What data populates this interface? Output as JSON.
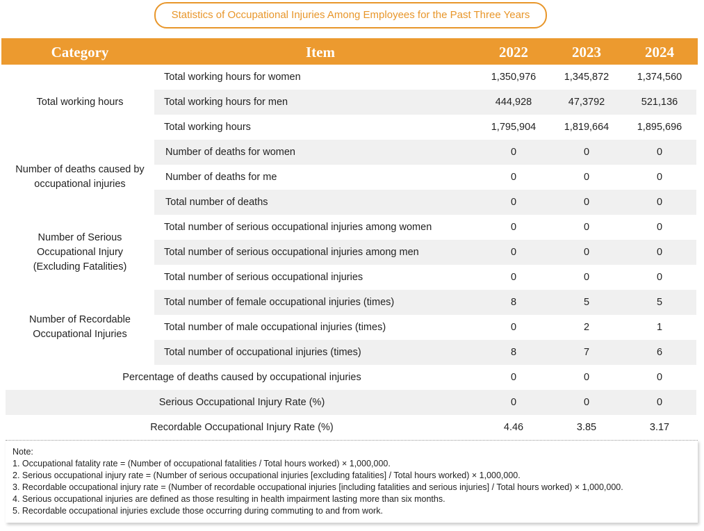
{
  "header": {
    "title": "Statistics of Occupational Injuries Among Employees for the Past Three Years"
  },
  "table": {
    "columns": [
      "Category",
      "Item",
      "2022",
      "2023",
      "2024"
    ],
    "groups": [
      {
        "category": "Total working hours",
        "rows": [
          {
            "item": "Total working hours for women",
            "values": [
              "1,350,976",
              "1,345,872",
              "1,374,560"
            ]
          },
          {
            "item": "Total working hours for men",
            "values": [
              "444,928",
              "47,3792",
              "521,136"
            ]
          },
          {
            "item": "Total working hours",
            "values": [
              "1,795,904",
              "1,819,664",
              "1,895,696"
            ]
          }
        ]
      },
      {
        "category": "Number of deaths caused by occupational injuries",
        "rows": [
          {
            "item": "Number of deaths for women",
            "values": [
              "0",
              "0",
              "0"
            ]
          },
          {
            "item": "Number of deaths for me",
            "values": [
              "0",
              "0",
              "0"
            ]
          },
          {
            "item": "Total number of deaths",
            "values": [
              "0",
              "0",
              "0"
            ]
          }
        ]
      },
      {
        "category": "Number of Serious Occupational Injury (Excluding Fatalities)",
        "rows": [
          {
            "item": "Total number of serious occupational injuries among women",
            "values": [
              "0",
              "0",
              "0"
            ]
          },
          {
            "item": "Total number of serious occupational injuries among men",
            "values": [
              "0",
              "0",
              "0"
            ]
          },
          {
            "item": "Total number of serious occupational injuries",
            "values": [
              "0",
              "0",
              "0"
            ]
          }
        ]
      },
      {
        "category": "Number of Recordable Occupational Injuries",
        "rows": [
          {
            "item": "Total number of female occupational injuries (times)",
            "values": [
              "8",
              "5",
              "5"
            ]
          },
          {
            "item": "Total number of male occupational injuries (times)",
            "values": [
              "0",
              "2",
              "1"
            ]
          },
          {
            "item": "Total number of occupational injuries (times)",
            "values": [
              "8",
              "7",
              "6"
            ]
          }
        ]
      }
    ],
    "summary_rows": [
      {
        "item": "Percentage of deaths caused by occupational injuries",
        "values": [
          "0",
          "0",
          "0"
        ]
      },
      {
        "item": "Serious Occupational Injury Rate (%)",
        "values": [
          "0",
          "0",
          "0"
        ]
      },
      {
        "item": "Recordable Occupational Injury Rate (%)",
        "values": [
          "4.46",
          "3.85",
          "3.17"
        ]
      }
    ]
  },
  "notes": {
    "heading": "Note:",
    "items": [
      "1. Occupational fatality rate = (Number of occupational fatalities / Total hours worked) × 1,000,000.",
      "2. Serious occupational injury rate = (Number of serious occupational injuries [excluding fatalities] / Total hours worked) × 1,000,000.",
      "3. Recordable occupational injury rate = (Number of recordable occupational injuries [including fatalities and serious injuries] / Total hours worked) × 1,000,000.",
      "4. Serious occupational injuries are defined as those resulting in health impairment lasting more than six months.",
      "5. Recordable occupational injuries exclude those occurring during commuting to and from work."
    ]
  }
}
